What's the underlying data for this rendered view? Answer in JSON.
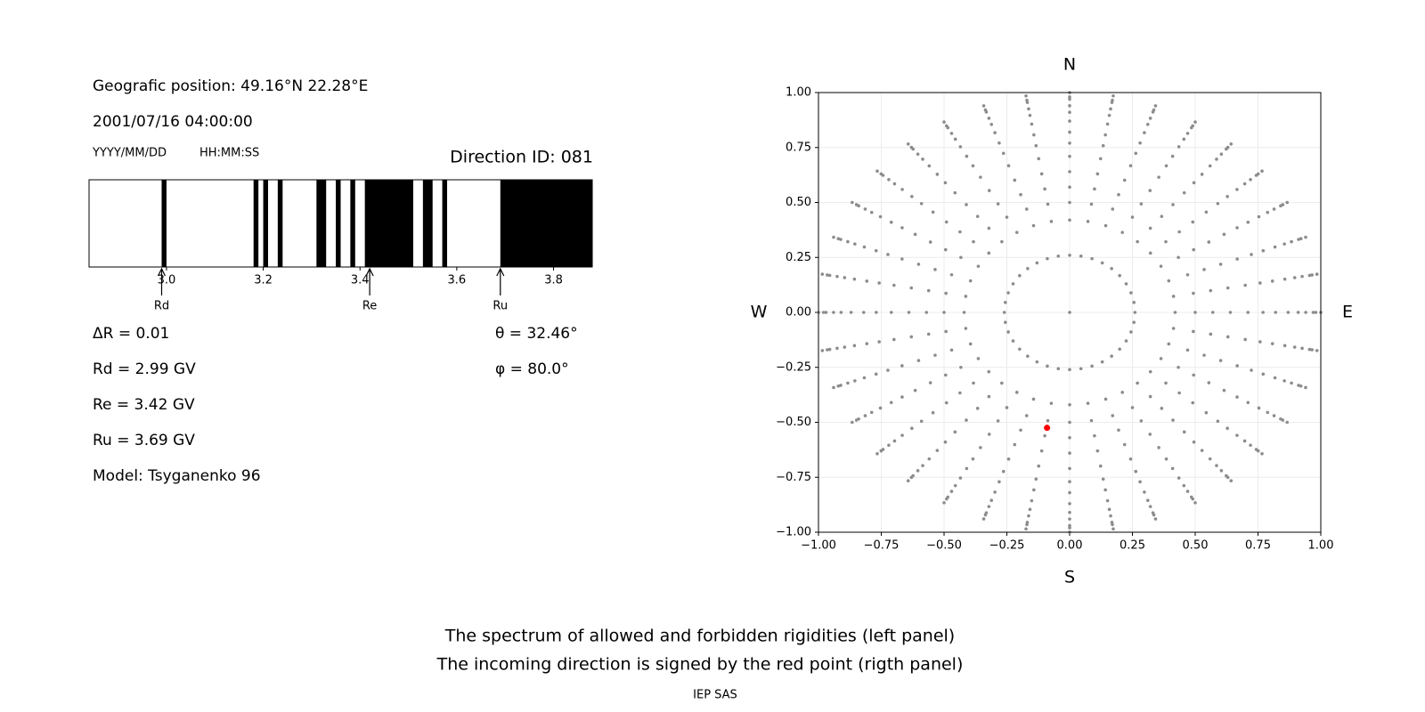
{
  "header": {
    "position": "Geografic position: 49.16°N 22.28°E",
    "datetime": "2001/07/16 04:00:00",
    "date_format": "YYYY/MM/DD",
    "time_format": "HH:MM:SS",
    "direction": "Direction ID: 081"
  },
  "results": [
    "ΔR = 0.01",
    "Rd = 2.99 GV",
    "Re = 3.42 GV",
    "Ru = 3.69 GV",
    "Model: Tsyganenko 96"
  ],
  "angles": [
    "θ = 32.46°",
    "φ = 80.0°"
  ],
  "caption": [
    "The spectrum of allowed and forbidden rigidities (left panel)",
    "The incoming direction is signed by the red point (rigth panel)"
  ],
  "footer": "IEP SAS",
  "chart_data": [
    {
      "type": "spectrum",
      "color": "#000000",
      "xlim": [
        2.84,
        3.88
      ],
      "xticks": [
        {
          "value": 3,
          "label": "3.0"
        },
        3.2,
        3.4,
        3.6,
        3.8
      ],
      "forbidden": [
        [
          2.99,
          3.0
        ],
        [
          3.18,
          3.19
        ],
        [
          3.2,
          3.21
        ],
        [
          3.23,
          3.24
        ],
        [
          3.31,
          3.33
        ],
        [
          3.35,
          3.36
        ],
        [
          3.38,
          3.39
        ],
        [
          3.41,
          3.51
        ],
        [
          3.53,
          3.55
        ],
        [
          3.57,
          3.58
        ],
        [
          3.69,
          3.88
        ]
      ],
      "markers": [
        {
          "label": "Rd",
          "value": 2.99
        },
        {
          "label": "Re",
          "value": 3.42
        },
        {
          "label": "Ru",
          "value": 3.69
        }
      ]
    },
    {
      "type": "polar-scatter",
      "xlim": [
        -1,
        1
      ],
      "ylim": [
        -1,
        1
      ],
      "xticks": [
        {
          "value": -1,
          "label": "−1.00"
        },
        {
          "value": -0.75,
          "label": "−0.75"
        },
        {
          "value": -0.5,
          "label": "−0.50"
        },
        {
          "value": -0.25,
          "label": "−0.25"
        },
        {
          "value": 0,
          "label": "0.00"
        },
        {
          "value": 0.25,
          "label": "0.25"
        },
        {
          "value": 0.5,
          "label": "0.50"
        },
        {
          "value": 0.75,
          "label": "0.75"
        },
        {
          "value": 1,
          "label": "1.00"
        }
      ],
      "yticks": [
        {
          "value": -1,
          "label": "−1.00"
        },
        {
          "value": -0.75,
          "label": "−0.75"
        },
        {
          "value": -0.5,
          "label": "−0.50"
        },
        {
          "value": -0.25,
          "label": "−0.25"
        },
        {
          "value": 0,
          "label": "0.00"
        },
        {
          "value": 0.25,
          "label": "0.25"
        },
        {
          "value": 0.5,
          "label": "0.50"
        },
        {
          "value": 0.75,
          "label": "0.75"
        },
        {
          "value": 1,
          "label": "1.00"
        }
      ],
      "grid": true,
      "compass": {
        "north": "N",
        "south": "S",
        "west": "W",
        "east": "E"
      },
      "directions": {
        "color": "#8c8c8c",
        "azimuths": [
          0,
          10,
          20,
          30,
          40,
          50,
          60,
          70,
          80,
          90,
          100,
          110,
          120,
          130,
          140,
          150,
          160,
          170,
          180,
          190,
          200,
          210,
          220,
          230,
          240,
          250,
          260,
          270,
          280,
          290,
          300,
          310,
          320,
          330,
          340,
          350
        ],
        "radii": [
          0.26,
          0.42,
          0.5,
          0.57,
          0.64,
          0.71,
          0.77,
          0.82,
          0.87,
          0.91,
          0.94,
          0.97,
          0.98,
          1.0
        ]
      },
      "center": {
        "x": 0,
        "y": 0
      },
      "highlight": {
        "x": -0.09,
        "y": -0.525,
        "color": "#ff0000"
      }
    }
  ]
}
